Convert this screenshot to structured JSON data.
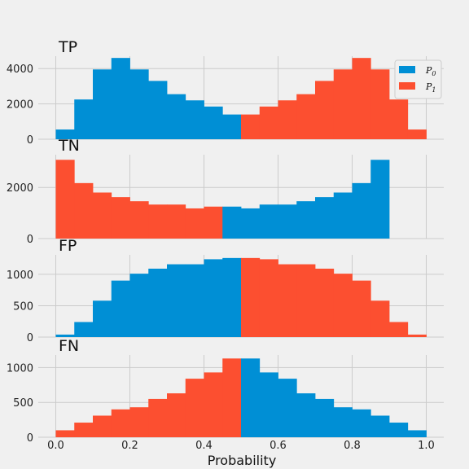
{
  "chart_data": {
    "type": "bar",
    "xlabel": "Probability",
    "xlim": [
      0.0,
      1.0
    ],
    "x_ticks": [
      "0.0",
      "0.2",
      "0.4",
      "0.6",
      "0.8",
      "1.0"
    ],
    "bin_edges": [
      0.0,
      0.05,
      0.1,
      0.15,
      0.2,
      0.25,
      0.3,
      0.35,
      0.4,
      0.45,
      0.5,
      0.55,
      0.6,
      0.65,
      0.7,
      0.75,
      0.8,
      0.85,
      0.9,
      0.95,
      1.0
    ],
    "colors": {
      "P0": "#008fd5",
      "P1": "#fc4f30"
    },
    "legend": {
      "position": "top-right",
      "entries": [
        {
          "key": "P0",
          "base": "P",
          "sub": "0"
        },
        {
          "key": "P1",
          "base": "P",
          "sub": "1"
        }
      ]
    },
    "panels": [
      {
        "title": "TP",
        "ylim": [
          0,
          4700
        ],
        "yticks": [
          0,
          2000,
          4000
        ],
        "ytick_labels": [
          "0",
          "2000",
          "4000"
        ],
        "series": [
          {
            "key": "P0",
            "values": [
              550,
              2250,
              3950,
              4600,
              3950,
              3300,
              2550,
              2200,
              1850,
              1400,
              0,
              0,
              0,
              0,
              0,
              0,
              0,
              0,
              0,
              0
            ]
          },
          {
            "key": "P1",
            "values": [
              0,
              0,
              0,
              0,
              0,
              0,
              0,
              0,
              0,
              0,
              1400,
              1850,
              2200,
              2550,
              3300,
              3950,
              4600,
              3950,
              2250,
              550
            ]
          }
        ]
      },
      {
        "title": "TN",
        "ylim": [
          0,
          3280
        ],
        "yticks": [
          0,
          2000
        ],
        "ytick_labels": [
          "0",
          "2000"
        ],
        "series": [
          {
            "key": "P1",
            "values": [
              3080,
              2170,
              1800,
              1620,
              1460,
              1330,
              1330,
              1180,
              1250,
              0,
              0,
              0,
              0,
              0,
              0,
              0,
              0,
              0,
              0,
              0
            ]
          },
          {
            "key": "P0",
            "values": [
              0,
              0,
              0,
              0,
              0,
              0,
              0,
              0,
              0,
              1250,
              1180,
              1330,
              1330,
              1460,
              1620,
              1800,
              2170,
              3080,
              0,
              0
            ]
          }
        ]
      },
      {
        "title": "FP",
        "ylim": [
          0,
          1310
        ],
        "yticks": [
          0,
          500,
          1000
        ],
        "ytick_labels": [
          "0",
          "500",
          "1000"
        ],
        "series": [
          {
            "key": "P0",
            "values": [
              40,
              240,
              580,
              900,
              1010,
              1090,
              1160,
              1160,
              1240,
              1260,
              0,
              0,
              0,
              0,
              0,
              0,
              0,
              0,
              0,
              0
            ]
          },
          {
            "key": "P1",
            "values": [
              0,
              0,
              0,
              0,
              0,
              0,
              0,
              0,
              0,
              0,
              1260,
              1240,
              1160,
              1160,
              1090,
              1010,
              900,
              580,
              240,
              40
            ]
          }
        ]
      },
      {
        "title": "FN",
        "ylim": [
          0,
          1180
        ],
        "yticks": [
          0,
          500,
          1000
        ],
        "ytick_labels": [
          "0",
          "500",
          "1000"
        ],
        "series": [
          {
            "key": "P1",
            "values": [
              100,
              210,
              310,
              400,
              430,
              550,
              630,
              840,
              930,
              1130,
              0,
              0,
              0,
              0,
              0,
              0,
              0,
              0,
              0,
              0
            ]
          },
          {
            "key": "P0",
            "values": [
              0,
              0,
              0,
              0,
              0,
              0,
              0,
              0,
              0,
              0,
              1130,
              930,
              840,
              630,
              550,
              430,
              400,
              310,
              210,
              100
            ]
          }
        ]
      }
    ]
  }
}
